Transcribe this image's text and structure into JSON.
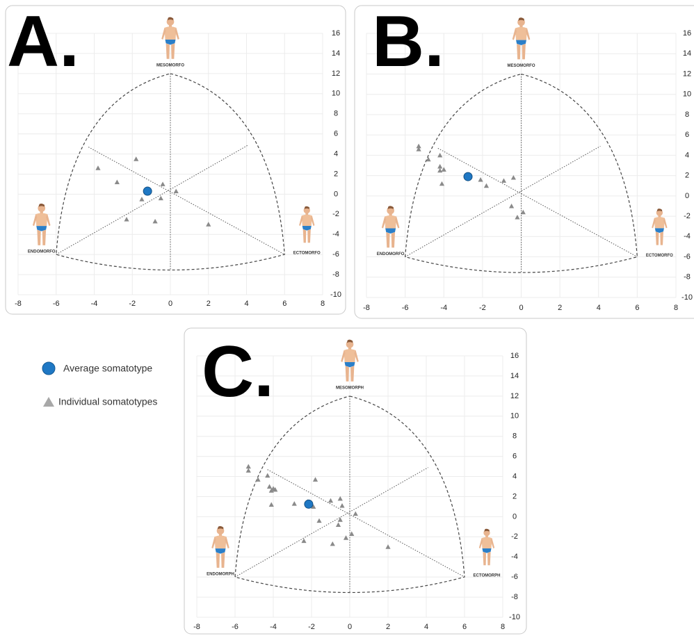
{
  "chart_data": [
    {
      "type": "scatter",
      "title": "A.",
      "labels": {
        "mesomorph": "MESOMORFO",
        "endomorph": "ENDOMORFO",
        "ectomorph": "ECTOMORFO"
      },
      "xlim": [
        -8,
        8
      ],
      "xticks": [
        -8,
        -6,
        -4,
        -2,
        0,
        2,
        4,
        6,
        8
      ],
      "ylim": [
        -10,
        16
      ],
      "yticks": [
        -10,
        -8,
        -6,
        -4,
        -2,
        0,
        2,
        4,
        6,
        8,
        10,
        12,
        14,
        16
      ],
      "grid": true,
      "series": [
        {
          "name": "Average somatotype",
          "color": "#1f78c4",
          "marker": "circle",
          "x": [
            -1.2
          ],
          "values": [
            0.3
          ]
        },
        {
          "name": "Individual somatotypes",
          "color": "#8a8a8a",
          "marker": "triangle",
          "x": [
            -3.8,
            -2.8,
            -1.8,
            -1.5,
            -2.3,
            -0.8,
            -0.5,
            -0.4,
            0.3,
            2.0
          ],
          "values": [
            2.6,
            1.2,
            3.5,
            -0.5,
            -2.5,
            -2.7,
            -0.4,
            1.0,
            0.3,
            -3.0
          ]
        }
      ]
    },
    {
      "type": "scatter",
      "title": "B.",
      "labels": {
        "mesomorph": "MESOMORFO",
        "endomorph": "ENDOMORFO",
        "ectomorph": "ECTOMORFO"
      },
      "xlim": [
        -8,
        8
      ],
      "xticks": [
        -8,
        -6,
        -4,
        -2,
        0,
        2,
        4,
        6,
        8
      ],
      "ylim": [
        -10,
        16
      ],
      "yticks": [
        -10,
        -8,
        -6,
        -4,
        -2,
        0,
        2,
        4,
        6,
        8,
        10,
        12,
        14,
        16
      ],
      "grid": true,
      "series": [
        {
          "name": "Average somatotype",
          "color": "#1f78c4",
          "marker": "circle",
          "x": [
            -2.75
          ],
          "values": [
            1.9
          ]
        },
        {
          "name": "Individual somatotypes",
          "color": "#8a8a8a",
          "marker": "triangle",
          "x": [
            -5.3,
            -5.3,
            -4.8,
            -4.2,
            -4.2,
            -4.0,
            -4.2,
            -4.1,
            -2.1,
            -1.8,
            -0.9,
            -0.4,
            -0.5,
            -0.2,
            0.1
          ],
          "values": [
            4.9,
            4.6,
            3.6,
            4.0,
            2.9,
            2.6,
            2.5,
            1.2,
            1.6,
            1.0,
            1.5,
            1.8,
            -1.0,
            -2.1,
            -1.6
          ]
        }
      ]
    },
    {
      "type": "scatter",
      "title": "C.",
      "labels": {
        "mesomorph": "MESOMORPH",
        "endomorph": "ENDOMORPH",
        "ectomorph": "ECTOMORPH"
      },
      "xlim": [
        -8,
        8
      ],
      "xticks": [
        -8,
        -6,
        -4,
        -2,
        0,
        2,
        4,
        6,
        8
      ],
      "ylim": [
        -10,
        16
      ],
      "yticks": [
        -10,
        -8,
        -6,
        -4,
        -2,
        0,
        2,
        4,
        6,
        8,
        10,
        12,
        14,
        16
      ],
      "grid": true,
      "series": [
        {
          "name": "Average somatotype",
          "color": "#1f78c4",
          "marker": "circle",
          "x": [
            -2.15
          ],
          "values": [
            1.25
          ]
        },
        {
          "name": "Individual somatotypes",
          "color": "#8a8a8a",
          "marker": "triangle",
          "x": [
            -5.3,
            -5.3,
            -4.8,
            -4.3,
            -4.2,
            -4.0,
            -4.1,
            -3.9,
            -4.1,
            -2.9,
            -2.2,
            -1.8,
            -1.9,
            -1.6,
            -1.0,
            -0.5,
            -0.4,
            -0.5,
            -0.6,
            -0.2,
            0.1,
            0.3,
            -2.4,
            -0.9,
            2.0
          ],
          "values": [
            5.0,
            4.6,
            3.7,
            4.1,
            3.0,
            2.8,
            2.6,
            2.7,
            1.2,
            1.3,
            1.5,
            3.7,
            1.0,
            -0.4,
            1.6,
            1.8,
            1.1,
            -0.3,
            -0.8,
            -2.1,
            -1.7,
            0.3,
            -2.4,
            -2.7,
            -3.0
          ]
        }
      ]
    }
  ]
}
